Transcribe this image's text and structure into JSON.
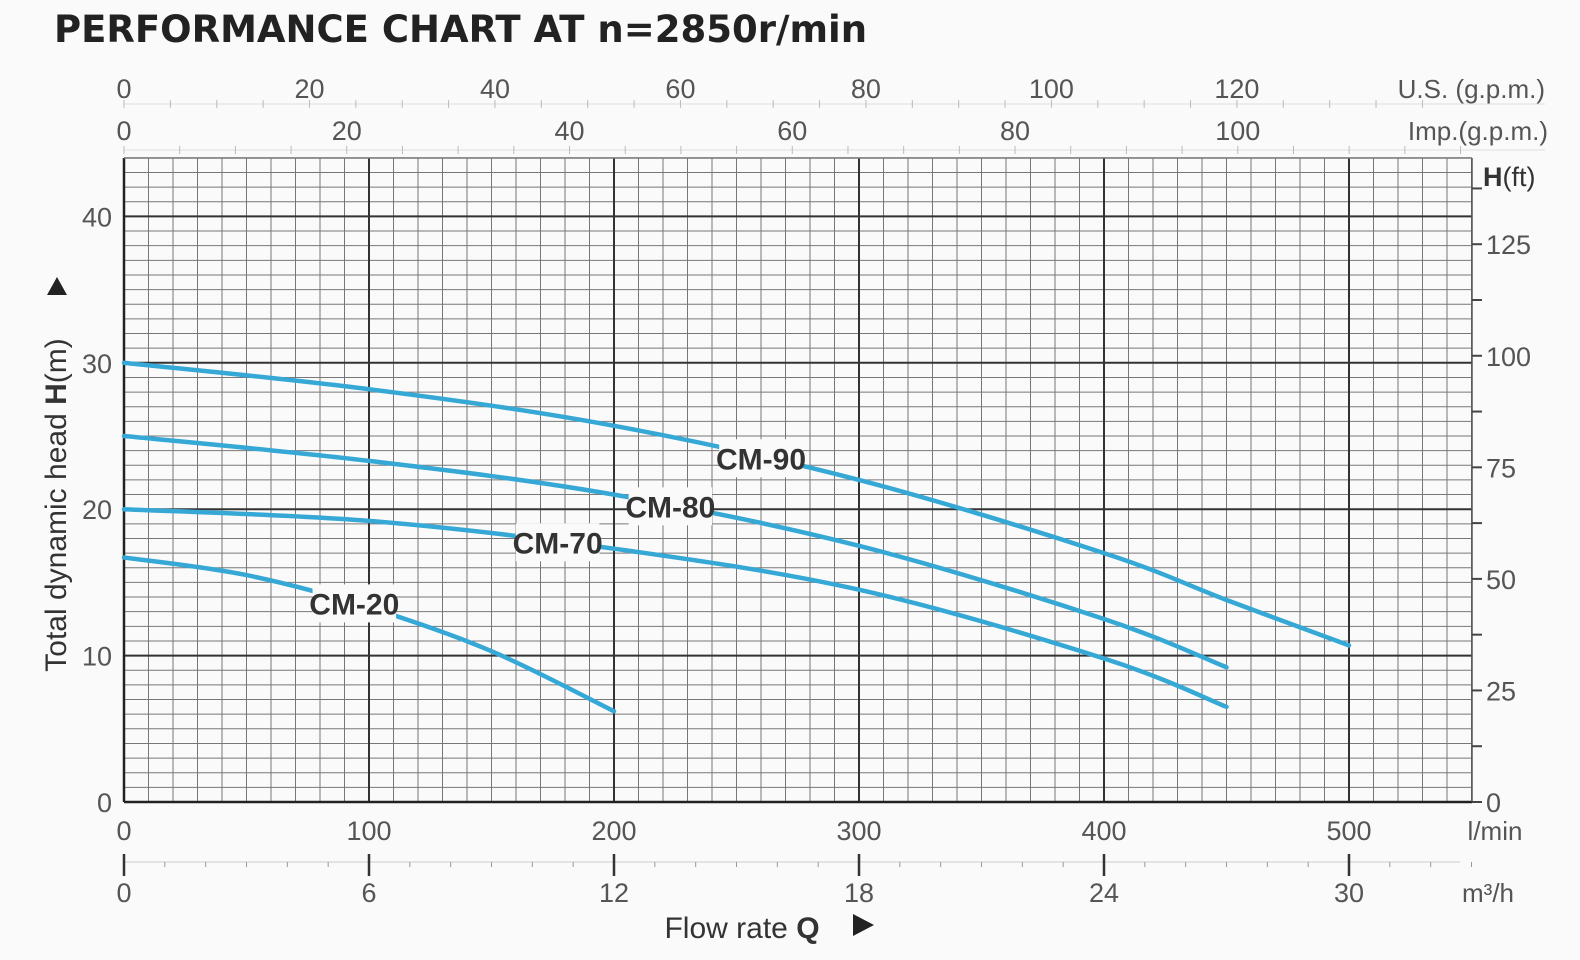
{
  "chart_data": {
    "type": "line",
    "title": "PERFORMANCE CHART AT n=2850r/min",
    "ylabel_prefix": "Total dynamic head ",
    "ylabel_bold": "H",
    "ylabel_unit": "(m)",
    "xlabel_prefix": "Flow rate ",
    "xlabel_bold": "Q",
    "right_axis_label_bold": "H",
    "right_axis_label_unit": "(ft)",
    "x_unit": "l/min",
    "xlim": [
      0,
      550
    ],
    "ylim": [
      0,
      44
    ],
    "x_ticks": [
      "0",
      "100",
      "200",
      "300",
      "400",
      "500"
    ],
    "y_ticks": [
      "0",
      "10",
      "20",
      "30",
      "40"
    ],
    "m3h_unit": "m³/h",
    "m3h_ticks": [
      "0",
      "6",
      "12",
      "18",
      "24",
      "30"
    ],
    "us_gpm_unit": "U.S. (g.p.m.)",
    "us_gpm_ticks": [
      "0",
      "20",
      "40",
      "60",
      "80",
      "100",
      "120"
    ],
    "imp_gpm_unit": "Imp.(g.p.m.)",
    "imp_gpm_ticks": [
      "0",
      "20",
      "40",
      "60",
      "80",
      "100"
    ],
    "ft_ticks": [
      "0",
      "25",
      "50",
      "75",
      "100",
      "125"
    ],
    "grid": true,
    "series": [
      {
        "name": "CM-90",
        "x": [
          0,
          100,
          200,
          300,
          400,
          450,
          500
        ],
        "y": [
          30,
          28.2,
          25.7,
          22.0,
          17.0,
          13.8,
          10.7
        ]
      },
      {
        "name": "CM-80",
        "x": [
          0,
          100,
          200,
          300,
          400,
          450
        ],
        "y": [
          25,
          23.3,
          21.0,
          17.5,
          12.5,
          9.2
        ]
      },
      {
        "name": "CM-70",
        "x": [
          0,
          100,
          200,
          300,
          400,
          450
        ],
        "y": [
          20,
          19.2,
          17.3,
          14.5,
          9.8,
          6.5
        ]
      },
      {
        "name": "CM-20",
        "x": [
          0,
          50,
          100,
          150,
          200
        ],
        "y": [
          16.7,
          15.5,
          13.3,
          10.3,
          6.2
        ]
      }
    ]
  }
}
